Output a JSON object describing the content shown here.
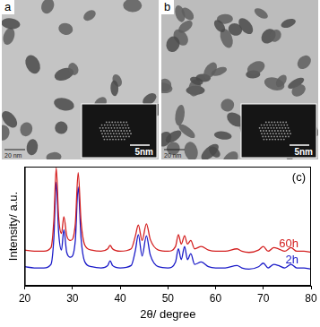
{
  "panels": [
    {
      "label": "a",
      "scale_bar": "20 nm",
      "inset_scale_bar": "5nm"
    },
    {
      "label": "b",
      "scale_bar": "20 nm",
      "inset_scale_bar": "5nm"
    }
  ],
  "chart_data": {
    "type": "line",
    "title": "(c)",
    "x_label": "2θ/ degree",
    "y_label": "Intensity/ a.u.",
    "x": [
      20,
      22,
      24,
      25.5,
      26.1,
      26.6,
      27.1,
      27.7,
      28.2,
      28.8,
      29.6,
      30.6,
      31.2,
      31.8,
      32.6,
      34,
      36,
      37.4,
      37.9,
      38.4,
      40,
      42.3,
      43.2,
      43.8,
      44.6,
      45.5,
      46.3,
      48,
      50,
      51.6,
      52.2,
      52.8,
      53.5,
      54.1,
      54.8,
      55.6,
      57,
      58.5,
      60,
      62,
      64.5,
      65.5,
      67,
      69,
      70,
      71,
      72.2,
      73.2,
      74.5,
      75.8,
      77,
      78.5,
      80
    ],
    "series": [
      {
        "name": "60h",
        "color": "#d42020",
        "values": [
          30,
          29,
          29,
          32,
          55,
          99,
          58,
          44,
          58,
          42,
          38,
          52,
          95,
          54,
          34,
          30,
          29,
          31,
          34,
          31,
          29,
          31,
          42,
          51,
          38,
          52,
          39,
          30,
          29,
          33,
          43,
          35,
          42,
          35,
          38,
          31,
          33,
          30,
          29,
          29,
          31,
          29,
          28,
          30,
          33,
          29,
          32,
          31,
          29,
          32,
          29,
          29,
          28
        ]
      },
      {
        "name": "2h",
        "color": "#1a1ac8",
        "values": [
          16,
          15,
          15,
          18,
          40,
          87,
          45,
          30,
          47,
          28,
          24,
          38,
          83,
          40,
          20,
          16,
          15,
          17,
          21,
          17,
          15,
          17,
          30,
          43,
          25,
          42,
          26,
          16,
          15,
          20,
          31,
          22,
          33,
          22,
          27,
          18,
          20,
          16,
          15,
          15,
          17,
          15,
          14,
          16,
          19,
          15,
          18,
          17,
          15,
          18,
          15,
          15,
          14
        ]
      }
    ],
    "xlim": [
      20,
      80
    ],
    "xticks": [
      20,
      30,
      40,
      50,
      60,
      70,
      80
    ],
    "ylim": [
      0,
      100
    ],
    "tick_labels": "x",
    "grid": false
  }
}
